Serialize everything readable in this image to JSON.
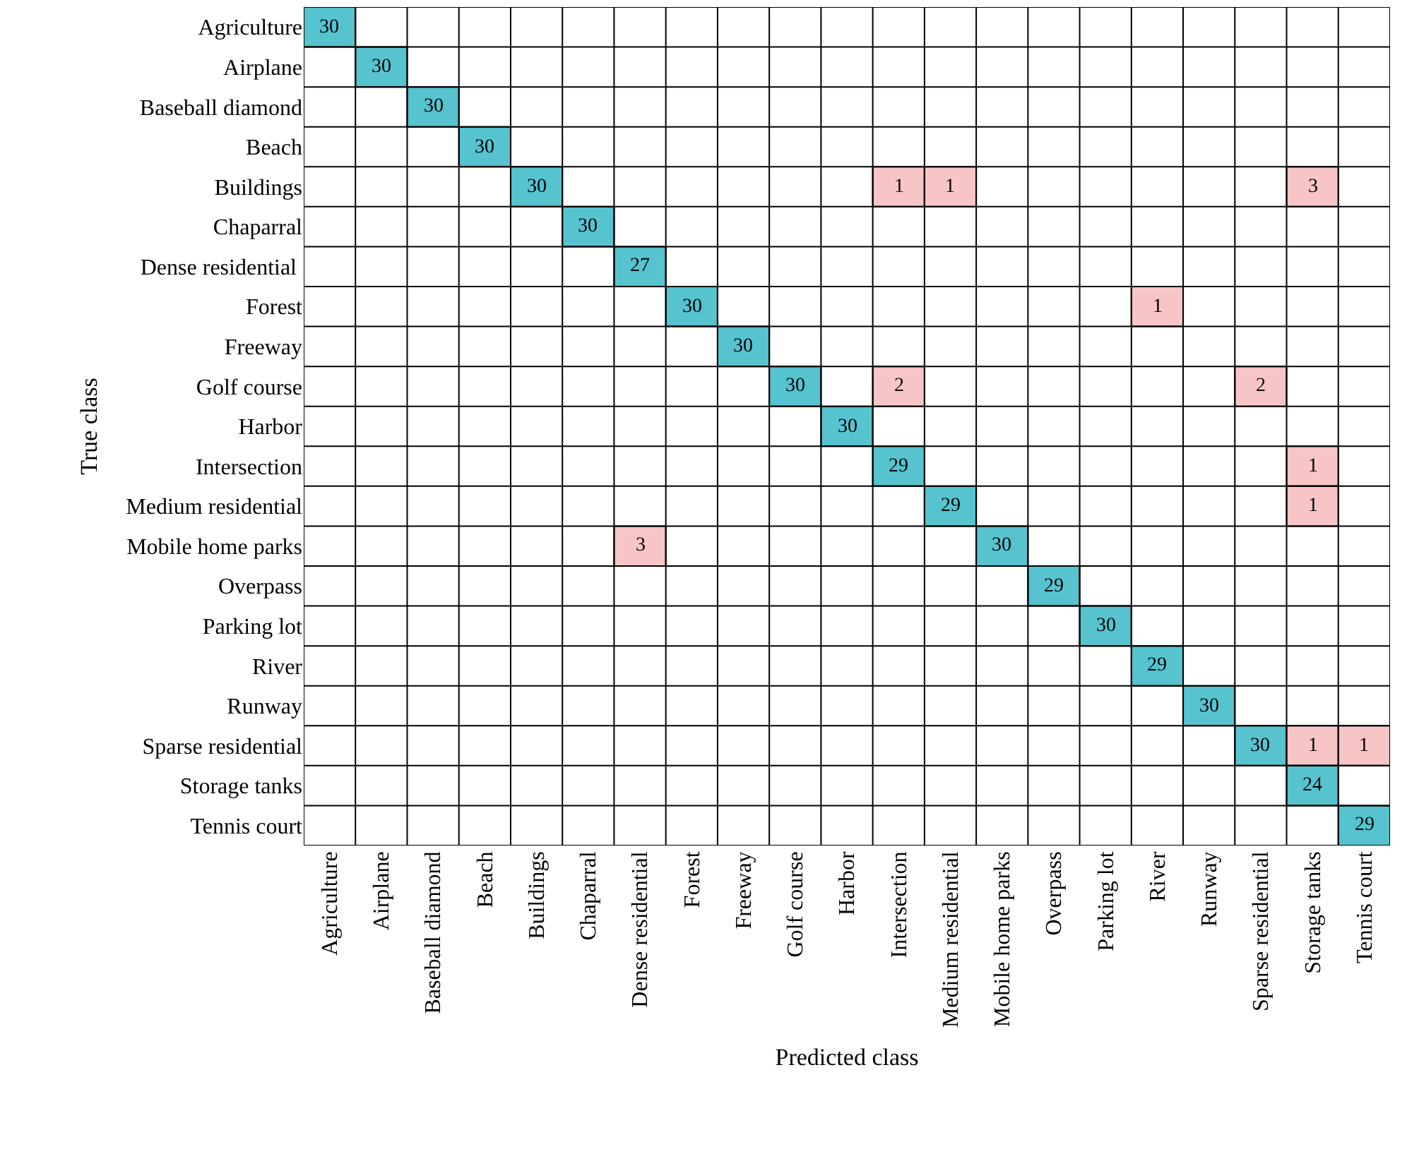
{
  "chart_data": {
    "type": "heatmap",
    "xlabel": "Predicted class",
    "ylabel": "True class",
    "categories": [
      "Agriculture",
      "Airplane",
      "Baseball diamond",
      "Beach",
      "Buildings",
      "Chaparral",
      "Dense residential",
      "Forest",
      "Freeway",
      "Golf course",
      "Harbor",
      "Intersection",
      "Medium residential",
      "Mobile home parks",
      "Overpass",
      "Parking lot",
      "River",
      "Runway",
      "Sparse residential",
      "Storage tanks",
      "Tennis court"
    ],
    "y_categories": [
      "Agriculture",
      "Airplane",
      "Baseball diamond",
      "Beach",
      "Buildings",
      "Chaparral",
      "Dense residential ",
      "Forest",
      "Freeway",
      "Golf course",
      "Harbor",
      "Intersection",
      "Medium residential",
      "Mobile home parks",
      "Overpass",
      "Parking lot",
      "River",
      "Runway",
      "Sparse residential",
      "Storage tanks",
      "Tennis court"
    ],
    "cells": [
      [
        30,
        null,
        null,
        null,
        null,
        null,
        null,
        null,
        null,
        null,
        null,
        null,
        null,
        null,
        null,
        null,
        null,
        null,
        null,
        null,
        null
      ],
      [
        null,
        30,
        null,
        null,
        null,
        null,
        null,
        null,
        null,
        null,
        null,
        null,
        null,
        null,
        null,
        null,
        null,
        null,
        null,
        null,
        null
      ],
      [
        null,
        null,
        30,
        null,
        null,
        null,
        null,
        null,
        null,
        null,
        null,
        null,
        null,
        null,
        null,
        null,
        null,
        null,
        null,
        null,
        null
      ],
      [
        null,
        null,
        null,
        30,
        null,
        null,
        null,
        null,
        null,
        null,
        null,
        null,
        null,
        null,
        null,
        null,
        null,
        null,
        null,
        null,
        null
      ],
      [
        null,
        null,
        null,
        null,
        30,
        null,
        null,
        null,
        null,
        null,
        null,
        1,
        1,
        null,
        null,
        null,
        null,
        null,
        null,
        3,
        null
      ],
      [
        null,
        null,
        null,
        null,
        null,
        30,
        null,
        null,
        null,
        null,
        null,
        null,
        null,
        null,
        null,
        null,
        null,
        null,
        null,
        null,
        null
      ],
      [
        null,
        null,
        null,
        null,
        null,
        null,
        27,
        null,
        null,
        null,
        null,
        null,
        null,
        null,
        null,
        null,
        null,
        null,
        null,
        null,
        null
      ],
      [
        null,
        null,
        null,
        null,
        null,
        null,
        null,
        30,
        null,
        null,
        null,
        null,
        null,
        null,
        null,
        null,
        1,
        null,
        null,
        null,
        null
      ],
      [
        null,
        null,
        null,
        null,
        null,
        null,
        null,
        null,
        30,
        null,
        null,
        null,
        null,
        null,
        null,
        null,
        null,
        null,
        null,
        null,
        null
      ],
      [
        null,
        null,
        null,
        null,
        null,
        null,
        null,
        null,
        null,
        30,
        null,
        2,
        null,
        null,
        null,
        null,
        null,
        null,
        2,
        null,
        null
      ],
      [
        null,
        null,
        null,
        null,
        null,
        null,
        null,
        null,
        null,
        null,
        30,
        null,
        null,
        null,
        null,
        null,
        null,
        null,
        null,
        null,
        null
      ],
      [
        null,
        null,
        null,
        null,
        null,
        null,
        null,
        null,
        null,
        null,
        null,
        29,
        null,
        null,
        null,
        null,
        null,
        null,
        null,
        1,
        null
      ],
      [
        null,
        null,
        null,
        null,
        null,
        null,
        null,
        null,
        null,
        null,
        null,
        null,
        29,
        null,
        null,
        null,
        null,
        null,
        null,
        1,
        null
      ],
      [
        null,
        null,
        null,
        null,
        null,
        null,
        3,
        null,
        null,
        null,
        null,
        null,
        null,
        30,
        null,
        null,
        null,
        null,
        null,
        null,
        null
      ],
      [
        null,
        null,
        null,
        null,
        null,
        null,
        null,
        null,
        null,
        null,
        null,
        null,
        null,
        null,
        29,
        null,
        null,
        null,
        null,
        null,
        null
      ],
      [
        null,
        null,
        null,
        null,
        null,
        null,
        null,
        null,
        null,
        null,
        null,
        null,
        null,
        null,
        null,
        30,
        null,
        null,
        null,
        null,
        null
      ],
      [
        null,
        null,
        null,
        null,
        null,
        null,
        null,
        null,
        null,
        null,
        null,
        null,
        null,
        null,
        null,
        null,
        29,
        null,
        null,
        null,
        null
      ],
      [
        null,
        null,
        null,
        null,
        null,
        null,
        null,
        null,
        null,
        null,
        null,
        null,
        null,
        null,
        null,
        null,
        null,
        30,
        null,
        null,
        null
      ],
      [
        null,
        null,
        null,
        null,
        null,
        null,
        null,
        null,
        null,
        null,
        null,
        null,
        null,
        null,
        null,
        null,
        null,
        null,
        30,
        1,
        1
      ],
      [
        null,
        null,
        null,
        null,
        null,
        null,
        null,
        null,
        null,
        null,
        null,
        null,
        null,
        null,
        null,
        null,
        null,
        null,
        null,
        24,
        null
      ],
      [
        null,
        null,
        null,
        null,
        null,
        null,
        null,
        null,
        null,
        null,
        null,
        null,
        null,
        null,
        null,
        null,
        null,
        null,
        null,
        null,
        29
      ]
    ],
    "colors": [
      "#56c3cf",
      "#f8c5c6"
    ],
    "data_labels": true,
    "grid": true
  }
}
